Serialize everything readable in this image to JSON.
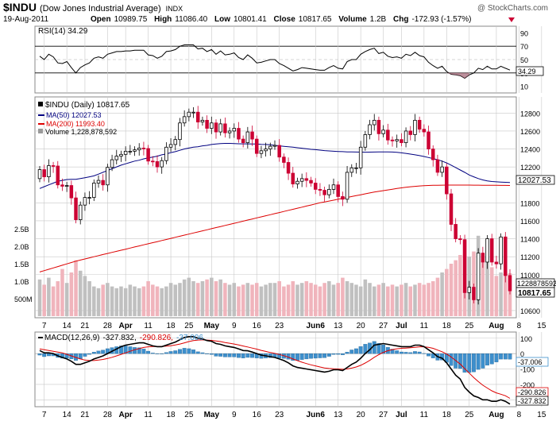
{
  "header": {
    "symbol": "$INDU",
    "name": "(Dow Jones Industrial Average)",
    "exchange": "INDX",
    "date": "19-Aug-2011",
    "open_label": "Open",
    "open": "10989.75",
    "high_label": "High",
    "high": "11086.40",
    "low_label": "Low",
    "low": "10801.41",
    "close_label": "Close",
    "close": "10817.65",
    "volume_label": "Volume",
    "volume": "1.2B",
    "chg_label": "Chg",
    "chg": "-172.93 (-1.57%)",
    "watermark": "@ StockCharts.com"
  },
  "rsi": {
    "legend": "RSI(14) 34.29",
    "last_label": "34.29",
    "levels": [
      90,
      70,
      50,
      30,
      10
    ],
    "level_labels": [
      "90",
      "70",
      "50",
      "30",
      "10"
    ]
  },
  "price": {
    "legend_main": "$INDU (Daily) 10817.65",
    "legend_ma50": "MA(50) 12027.53",
    "legend_ma200": "MA(200) 11993.40",
    "legend_vol": "Volume 1,228,878,592",
    "ylabels": [
      "12800",
      "12600",
      "12400",
      "12200",
      "11800",
      "11600",
      "11400",
      "11200",
      "11000",
      "10600"
    ],
    "ylevels": [
      12800,
      12600,
      12400,
      12200,
      11800,
      11600,
      11400,
      11200,
      11000,
      10600
    ],
    "tag_ma50": "12027.53",
    "tag_vol": "1228878592",
    "tag_close": "10817.65",
    "vol_labels": [
      "2.5B",
      "2.0B",
      "1.5B",
      "1.0B",
      "500M"
    ],
    "vol_levels": [
      2.5,
      2.0,
      1.5,
      1.0,
      0.5
    ]
  },
  "macd": {
    "legend_name": "MACD(12,26,9)",
    "legend_macd": "-327.832,",
    "legend_signal": "-290.826,",
    "legend_hist": "-37.006",
    "ylabels": [
      "100",
      "0",
      "-100",
      "-200",
      "-300"
    ],
    "ylevels": [
      100,
      0,
      -100,
      -200,
      -300
    ],
    "tag_hist": "-37.006",
    "tag_signal": "-290.826",
    "tag_macd": "-327.832"
  },
  "xaxis": {
    "labels": [
      {
        "text": "7",
        "idx": 1,
        "bold": false
      },
      {
        "text": "14",
        "idx": 6,
        "bold": false
      },
      {
        "text": "21",
        "idx": 10,
        "bold": false
      },
      {
        "text": "28",
        "idx": 15,
        "bold": false
      },
      {
        "text": "Apr",
        "idx": 19,
        "bold": true
      },
      {
        "text": "11",
        "idx": 24,
        "bold": false
      },
      {
        "text": "18",
        "idx": 29,
        "bold": false
      },
      {
        "text": "25",
        "idx": 33,
        "bold": false
      },
      {
        "text": "May",
        "idx": 38,
        "bold": true
      },
      {
        "text": "9",
        "idx": 43,
        "bold": false
      },
      {
        "text": "16",
        "idx": 48,
        "bold": false
      },
      {
        "text": "23",
        "idx": 53,
        "bold": false
      },
      {
        "text": "Jun6",
        "idx": 61,
        "bold": true
      },
      {
        "text": "13",
        "idx": 66,
        "bold": false
      },
      {
        "text": "20",
        "idx": 71,
        "bold": false
      },
      {
        "text": "27",
        "idx": 76,
        "bold": false
      },
      {
        "text": "Jul",
        "idx": 80,
        "bold": true
      },
      {
        "text": "11",
        "idx": 85,
        "bold": false
      },
      {
        "text": "18",
        "idx": 90,
        "bold": false
      },
      {
        "text": "25",
        "idx": 95,
        "bold": false
      },
      {
        "text": "Aug",
        "idx": 101,
        "bold": true
      },
      {
        "text": "8",
        "idx": 106,
        "bold": false
      },
      {
        "text": "15",
        "idx": 111,
        "bold": false
      }
    ]
  },
  "colors": {
    "up": "#000000",
    "down": "#cc0033",
    "ma50": "#000080",
    "ma200": "#dd0000",
    "vol_up": "#c0c0c0",
    "vol_down": "#f0b4bc",
    "hist": "#3d8fcc",
    "grid": "#c8c8c8",
    "chg": "#cc0033"
  },
  "chart_data": {
    "type": "candlestick",
    "title": "$INDU (Dow Jones Industrial Average) Daily",
    "x_start": "2011-03-04",
    "x_end": "2011-08-19",
    "close": [
      12170,
      12090,
      12215,
      12210,
      12000,
      11985,
      11993,
      11855,
      11612,
      11775,
      11860,
      11860,
      12020,
      12050,
      12000,
      12195,
      12280,
      12320,
      12340,
      12375,
      12375,
      12390,
      12410,
      12405,
      12265,
      12260,
      12200,
      12270,
      12420,
      12450,
      12505,
      12690,
      12760,
      12810,
      12810,
      12700,
      12720,
      12630,
      12690,
      12590,
      12680,
      12580,
      12600,
      12630,
      12510,
      12470,
      12590,
      12510,
      12350,
      12380,
      12400,
      12430,
      12440,
      12310,
      12250,
      12130,
      12010,
      12040,
      12070,
      12050,
      12020,
      11950,
      11940,
      11890,
      11950,
      12000,
      11870,
      11840,
      12140,
      12190,
      12190,
      12420,
      12560,
      12670,
      12720,
      12570,
      12610,
      12500,
      12490,
      12505,
      12470,
      12600,
      12560,
      12720,
      12620,
      12590,
      12400,
      12280,
      12140,
      12200,
      11900,
      11560,
      11400,
      11390,
      10800,
      10860,
      10720,
      11240,
      11140,
      11400,
      11140,
      11120,
      11420,
      10990,
      10820
    ],
    "open": [
      12070,
      12170,
      12090,
      12215,
      12210,
      12000,
      11985,
      11993,
      11855,
      11612,
      11775,
      11860,
      11860,
      12020,
      12050,
      12000,
      12195,
      12280,
      12320,
      12340,
      12375,
      12375,
      12390,
      12410,
      12405,
      12265,
      12260,
      12200,
      12270,
      12420,
      12450,
      12505,
      12690,
      12760,
      12810,
      12810,
      12700,
      12720,
      12630,
      12690,
      12590,
      12680,
      12580,
      12600,
      12630,
      12510,
      12470,
      12590,
      12510,
      12350,
      12380,
      12400,
      12430,
      12440,
      12310,
      12250,
      12130,
      12010,
      12040,
      12070,
      12050,
      12020,
      11950,
      11940,
      11890,
      11950,
      12000,
      11870,
      11840,
      12140,
      12190,
      12190,
      12420,
      12560,
      12670,
      12720,
      12570,
      12610,
      12500,
      12490,
      12505,
      12470,
      12600,
      12560,
      12720,
      12620,
      12590,
      12400,
      12280,
      12140,
      12200,
      11900,
      11560,
      11400,
      11390,
      10800,
      10860,
      10720,
      11240,
      11140,
      11400,
      11140,
      11120,
      11420,
      10990
    ],
    "ma50": [
      11960,
      11980,
      12000,
      12020,
      12040,
      12050,
      12060,
      12062,
      12062,
      12070,
      12080,
      12090,
      12100,
      12120,
      12140,
      12160,
      12180,
      12200,
      12220,
      12235,
      12250,
      12265,
      12275,
      12290,
      12300,
      12310,
      12320,
      12335,
      12345,
      12360,
      12370,
      12385,
      12400,
      12410,
      12420,
      12425,
      12435,
      12440,
      12450,
      12455,
      12460,
      12462,
      12462,
      12460,
      12458,
      12457,
      12457,
      12456,
      12455,
      12452,
      12450,
      12446,
      12440,
      12435,
      12430,
      12425,
      12420,
      12414,
      12408,
      12402,
      12396,
      12392,
      12387,
      12382,
      12378,
      12375,
      12372,
      12370,
      12368,
      12367,
      12366,
      12365,
      12364,
      12365,
      12366,
      12367,
      12368,
      12368,
      12366,
      12362,
      12357,
      12351,
      12343,
      12335,
      12326,
      12316,
      12305,
      12293,
      12280,
      12265,
      12245,
      12220,
      12193,
      12166,
      12139,
      12110,
      12090,
      12070,
      12055,
      12045,
      12038,
      12034,
      12031,
      12029,
      12027
    ],
    "ma200": [
      11030,
      11045,
      11060,
      11075,
      11090,
      11105,
      11120,
      11135,
      11150,
      11162,
      11175,
      11187,
      11200,
      11212,
      11224,
      11236,
      11248,
      11260,
      11272,
      11284,
      11296,
      11308,
      11320,
      11332,
      11344,
      11356,
      11368,
      11380,
      11392,
      11404,
      11416,
      11428,
      11440,
      11452,
      11464,
      11476,
      11488,
      11500,
      11512,
      11524,
      11536,
      11548,
      11560,
      11572,
      11584,
      11596,
      11608,
      11620,
      11632,
      11644,
      11656,
      11668,
      11680,
      11692,
      11704,
      11716,
      11728,
      11740,
      11752,
      11764,
      11776,
      11788,
      11800,
      11810,
      11820,
      11830,
      11840,
      11850,
      11860,
      11870,
      11880,
      11890,
      11900,
      11910,
      11920,
      11928,
      11936,
      11944,
      11952,
      11960,
      11967,
      11973,
      11979,
      11984,
      11988,
      11991,
      11993,
      11995,
      11996,
      11997,
      11998,
      11998,
      11998,
      11998,
      11998,
      11998,
      11997,
      11997,
      11996,
      11996,
      11995,
      11995,
      11994,
      11994,
      11993
    ],
    "volume_B": [
      1.05,
      0.9,
      1.1,
      0.85,
      1.0,
      1.35,
      0.95,
      1.25,
      1.6,
      1.3,
      1.15,
      1.0,
      0.85,
      0.8,
      0.9,
      0.95,
      0.85,
      0.8,
      0.85,
      0.8,
      0.9,
      0.85,
      0.8,
      0.85,
      1.0,
      0.9,
      0.85,
      0.8,
      0.85,
      0.95,
      0.9,
      0.95,
      1.05,
      1.1,
      1.0,
      0.95,
      1.0,
      1.05,
      1.1,
      1.0,
      1.05,
      0.95,
      0.9,
      0.95,
      0.85,
      0.9,
      0.95,
      0.9,
      0.95,
      0.85,
      0.9,
      0.95,
      0.95,
      1.0,
      0.85,
      0.9,
      1.0,
      0.9,
      0.95,
      1.0,
      0.95,
      0.9,
      0.85,
      0.95,
      1.0,
      0.9,
      0.95,
      1.1,
      1.0,
      0.95,
      0.9,
      0.85,
      1.05,
      0.95,
      0.85,
      0.9,
      0.95,
      0.85,
      0.9,
      0.85,
      0.9,
      0.95,
      0.85,
      0.9,
      0.95,
      0.9,
      0.95,
      1.0,
      1.1,
      1.25,
      1.35,
      1.5,
      1.6,
      1.75,
      2.15,
      1.7,
      1.85,
      2.3,
      1.6,
      1.7,
      1.4,
      1.15,
      1.25,
      1.2,
      1.23
    ],
    "rsi": [
      55,
      50,
      58,
      54,
      45,
      44,
      47,
      38,
      30,
      38,
      42,
      45,
      52,
      54,
      52,
      58,
      60,
      62,
      62,
      63,
      63,
      64,
      64,
      64,
      57,
      56,
      52,
      55,
      62,
      63,
      65,
      70,
      72,
      72,
      72,
      66,
      67,
      62,
      65,
      58,
      63,
      57,
      58,
      60,
      53,
      50,
      57,
      52,
      45,
      46,
      48,
      50,
      50,
      44,
      41,
      37,
      33,
      35,
      38,
      37,
      36,
      35,
      34,
      34,
      38,
      41,
      37,
      36,
      47,
      50,
      50,
      58,
      62,
      65,
      67,
      59,
      61,
      55,
      53,
      54,
      52,
      58,
      56,
      61,
      56,
      54,
      46,
      41,
      37,
      40,
      32,
      28,
      27,
      26,
      22,
      27,
      30,
      37,
      35,
      40,
      36,
      36,
      40,
      37,
      34.29
    ],
    "macd": [
      20,
      5,
      5,
      0,
      -15,
      -25,
      -35,
      -50,
      -70,
      -70,
      -60,
      -50,
      -35,
      -25,
      -15,
      0,
      15,
      30,
      45,
      55,
      60,
      65,
      70,
      70,
      60,
      50,
      45,
      45,
      55,
      65,
      75,
      90,
      105,
      110,
      110,
      100,
      95,
      85,
      80,
      65,
      60,
      50,
      45,
      40,
      30,
      20,
      18,
      10,
      0,
      -10,
      -15,
      -20,
      -25,
      -35,
      -45,
      -60,
      -80,
      -90,
      -95,
      -100,
      -105,
      -110,
      -115,
      -120,
      -115,
      -105,
      -105,
      -110,
      -90,
      -70,
      -55,
      -30,
      0,
      25,
      55,
      60,
      65,
      60,
      55,
      50,
      45,
      45,
      45,
      55,
      55,
      45,
      25,
      5,
      -20,
      -30,
      -60,
      -100,
      -140,
      -165,
      -220,
      -250,
      -275,
      -285,
      -300,
      -300,
      -310,
      -310,
      -300,
      -310,
      -327.832
    ],
    "signal": [
      30,
      25,
      20,
      15,
      10,
      5,
      -5,
      -15,
      -25,
      -35,
      -42,
      -45,
      -45,
      -42,
      -38,
      -32,
      -24,
      -15,
      -5,
      5,
      15,
      25,
      32,
      40,
      44,
      46,
      46,
      46,
      48,
      51,
      56,
      62,
      70,
      78,
      85,
      88,
      89,
      88,
      86,
      82,
      78,
      72,
      67,
      62,
      56,
      49,
      43,
      36,
      29,
      21,
      14,
      7,
      1,
      -6,
      -14,
      -23,
      -35,
      -46,
      -56,
      -65,
      -73,
      -80,
      -87,
      -93,
      -97,
      -99,
      -100,
      -102,
      -100,
      -94,
      -87,
      -76,
      -61,
      -44,
      -24,
      -7,
      8,
      19,
      26,
      31,
      34,
      36,
      38,
      41,
      44,
      44,
      41,
      34,
      23,
      12,
      -3,
      -22,
      -45,
      -68,
      -98,
      -127,
      -156,
      -182,
      -205,
      -224,
      -242,
      -255,
      -264,
      -274,
      -290.826
    ],
    "hist": [
      -10,
      -20,
      -15,
      -15,
      -25,
      -30,
      -30,
      -35,
      -45,
      -35,
      -18,
      -5,
      10,
      17,
      23,
      32,
      39,
      45,
      50,
      50,
      45,
      40,
      38,
      30,
      16,
      4,
      -1,
      -1,
      7,
      14,
      19,
      28,
      35,
      32,
      25,
      12,
      6,
      -3,
      -6,
      -17,
      -18,
      -22,
      -22,
      -22,
      -26,
      -29,
      -25,
      -26,
      -29,
      -31,
      -29,
      -27,
      -26,
      -29,
      -31,
      -37,
      -45,
      -44,
      -39,
      -35,
      -32,
      -30,
      -28,
      -27,
      -18,
      -6,
      -5,
      -8,
      10,
      24,
      32,
      46,
      61,
      69,
      79,
      67,
      57,
      41,
      29,
      19,
      11,
      9,
      7,
      14,
      11,
      1,
      -16,
      -29,
      -43,
      -42,
      -57,
      -78,
      -95,
      -97,
      -122,
      -123,
      -119,
      -103,
      -95,
      -76,
      -68,
      -55,
      -36,
      -36,
      -37.006
    ]
  }
}
